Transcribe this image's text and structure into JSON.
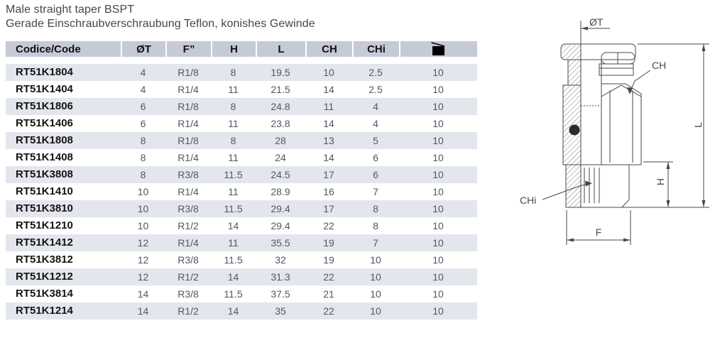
{
  "page": {
    "title": "Male straight taper BSPT",
    "subtitle": "Gerade Einschraubverschraubung Teflon, konishes Gewinde"
  },
  "table": {
    "headers": [
      "Codice/Code",
      "ØT",
      "F”",
      "H",
      "L",
      "CH",
      "CHi"
    ],
    "qty_column_icon": "package-icon",
    "rows": [
      [
        "RT51K1804",
        "4",
        "R1/8",
        "8",
        "19.5",
        "10",
        "2.5",
        "10"
      ],
      [
        "RT51K1404",
        "4",
        "R1/4",
        "11",
        "21.5",
        "14",
        "2.5",
        "10"
      ],
      [
        "RT51K1806",
        "6",
        "R1/8",
        "8",
        "24.8",
        "11",
        "4",
        "10"
      ],
      [
        "RT51K1406",
        "6",
        "R1/4",
        "11",
        "23.8",
        "14",
        "4",
        "10"
      ],
      [
        "RT51K1808",
        "8",
        "R1/8",
        "8",
        "28",
        "13",
        "5",
        "10"
      ],
      [
        "RT51K1408",
        "8",
        "R1/4",
        "11",
        "24",
        "14",
        "6",
        "10"
      ],
      [
        "RT51K3808",
        "8",
        "R3/8",
        "11.5",
        "24.5",
        "17",
        "6",
        "10"
      ],
      [
        "RT51K1410",
        "10",
        "R1/4",
        "11",
        "28.9",
        "16",
        "7",
        "10"
      ],
      [
        "RT51K3810",
        "10",
        "R3/8",
        "11.5",
        "29.4",
        "17",
        "8",
        "10"
      ],
      [
        "RT51K1210",
        "10",
        "R1/2",
        "14",
        "29.4",
        "22",
        "8",
        "10"
      ],
      [
        "RT51K1412",
        "12",
        "R1/4",
        "11",
        "35.5",
        "19",
        "7",
        "10"
      ],
      [
        "RT51K3812",
        "12",
        "R3/8",
        "11.5",
        "32",
        "19",
        "10",
        "10"
      ],
      [
        "RT51K1212",
        "12",
        "R1/2",
        "14",
        "31.3",
        "22",
        "10",
        "10"
      ],
      [
        "RT51K3814",
        "14",
        "R3/8",
        "11.5",
        "37.5",
        "21",
        "10",
        "10"
      ],
      [
        "RT51K1214",
        "14",
        "R1/2",
        "14",
        "35",
        "22",
        "10",
        "10"
      ]
    ]
  },
  "drawing": {
    "labels": {
      "tube_diameter": "ØT",
      "hex": "CH",
      "length": "L",
      "thread_height": "H",
      "inner_hex": "CHi",
      "thread_width": "F"
    }
  },
  "colors": {
    "header_bg": "#c6cad7",
    "row_stripe": "#e4e6ee",
    "value_text": "#54575f",
    "code_text": "#141414",
    "title_text": "#464646",
    "drawing_line": "#474747"
  }
}
